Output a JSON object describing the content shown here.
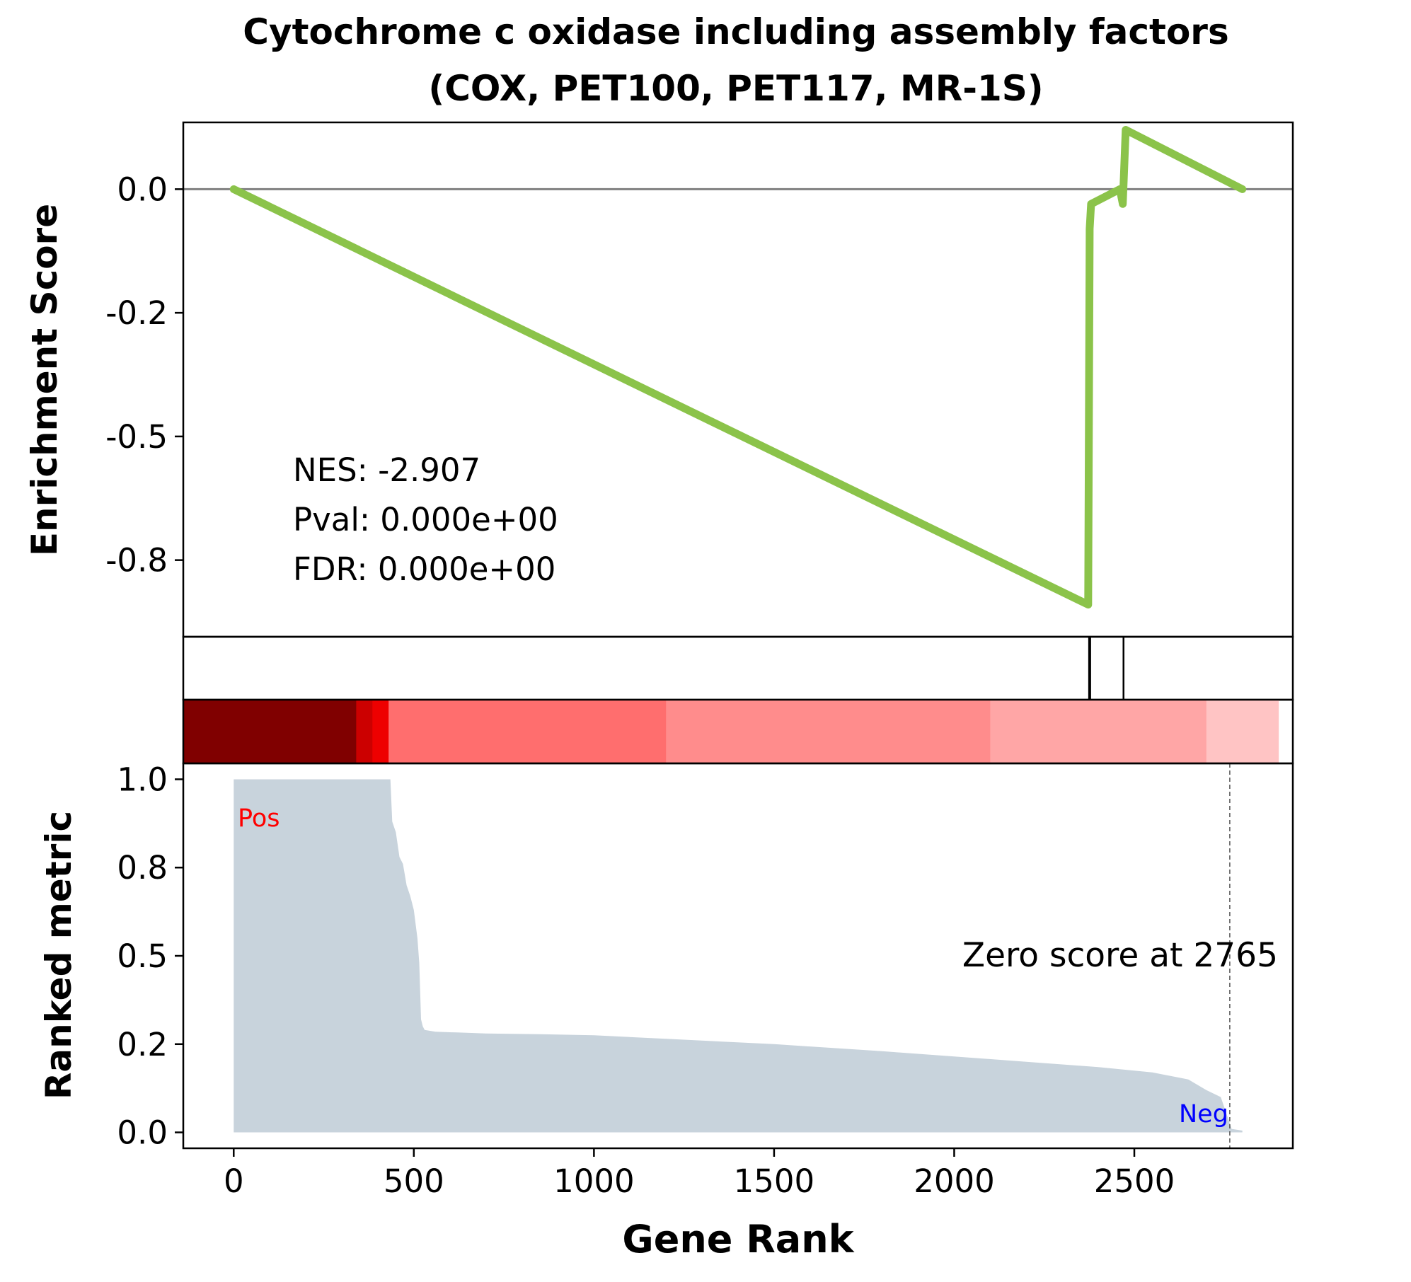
{
  "chart_data": [
    {
      "panel": "enrichment",
      "type": "line",
      "title": "Cytochrome c oxidase including assembly factors\n(COX, PET100, PET117, MR-1S)",
      "title_lines": [
        "Cytochrome c oxidase including assembly factors",
        "(COX, PET100, PET117, MR-1S)"
      ],
      "ylabel": "Enrichment Score",
      "xlim": [
        -140,
        2940
      ],
      "ylim": [
        -0.905,
        0.135
      ],
      "yticks": [
        0.0,
        -0.25,
        -0.5,
        -0.75
      ],
      "ytick_labels": [
        "0.0",
        "-0.2",
        "-0.5",
        "-0.8"
      ],
      "zero_line": true,
      "line_color": "#8bc34a",
      "series": [
        {
          "x": [
            0,
            2372,
            2376,
            2380,
            2460,
            2468,
            2476,
            2800
          ],
          "y": [
            0.0,
            -0.84,
            -0.08,
            -0.03,
            0.0,
            -0.03,
            0.12,
            0.0
          ]
        }
      ],
      "annotations": [
        "NES: -2.907",
        "Pval: 0.000e+00",
        "FDR: 0.000e+00"
      ]
    },
    {
      "panel": "hits",
      "type": "barcode",
      "xlim": [
        -140,
        2940
      ],
      "hit_positions": [
        2376,
        2470
      ]
    },
    {
      "panel": "colorbar",
      "type": "heatmap",
      "xlim": [
        -140,
        2940
      ],
      "range": [
        -140,
        2900
      ],
      "segments": [
        {
          "from": -140,
          "to": 340,
          "color": "#800000"
        },
        {
          "from": 340,
          "to": 385,
          "color": "#cc0000"
        },
        {
          "from": 385,
          "to": 430,
          "color": "#ee0000"
        },
        {
          "from": 430,
          "to": 1200,
          "color": "#ff6e6e"
        },
        {
          "from": 1200,
          "to": 2100,
          "color": "#ff8c8c"
        },
        {
          "from": 2100,
          "to": 2700,
          "color": "#ffa6a6"
        },
        {
          "from": 2700,
          "to": 2900,
          "color": "#ffc4c4"
        }
      ]
    },
    {
      "panel": "ranked",
      "type": "area",
      "xlabel": "Gene Rank",
      "ylabel": "Ranked metric",
      "xlim": [
        -140,
        2940
      ],
      "ylim": [
        -0.045,
        1.045
      ],
      "xticks": [
        0,
        500,
        1000,
        1500,
        2000,
        2500
      ],
      "xtick_labels": [
        "0",
        "500",
        "1000",
        "1500",
        "2000",
        "2500"
      ],
      "yticks": [
        0.0,
        0.25,
        0.5,
        0.75,
        1.0
      ],
      "ytick_labels": [
        "0.0",
        "0.2",
        "0.5",
        "0.8",
        "1.0"
      ],
      "fill_color": "#c8d3dc",
      "x": [
        0,
        435,
        440,
        450,
        460,
        470,
        480,
        490,
        500,
        510,
        515,
        520,
        525,
        530,
        560,
        620,
        700,
        850,
        1000,
        1200,
        1500,
        1800,
        2000,
        2200,
        2400,
        2550,
        2650,
        2700,
        2740,
        2770,
        2800
      ],
      "y": [
        1.0,
        1.0,
        0.88,
        0.85,
        0.78,
        0.76,
        0.7,
        0.67,
        0.63,
        0.55,
        0.48,
        0.32,
        0.3,
        0.29,
        0.285,
        0.283,
        0.28,
        0.278,
        0.275,
        0.265,
        0.25,
        0.23,
        0.215,
        0.2,
        0.185,
        0.17,
        0.15,
        0.12,
        0.1,
        0.01,
        0.005
      ],
      "zero_score_position": 2765,
      "zero_score_label": "Zero score at 2765",
      "pos_label": "Pos",
      "neg_label": "Neg",
      "pos_color": "#ff0000",
      "neg_color": "#0000ff"
    }
  ]
}
